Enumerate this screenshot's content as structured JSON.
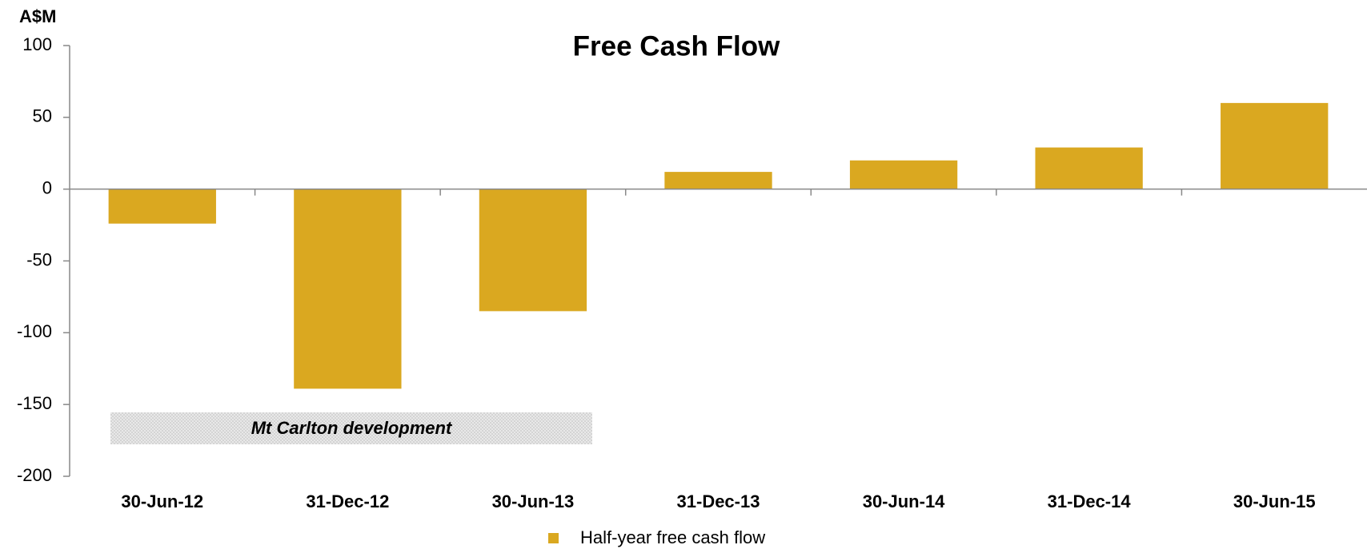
{
  "chart_data": {
    "type": "bar",
    "title": "Free Cash Flow",
    "ylabel": "A$M",
    "categories": [
      "30-Jun-12",
      "31-Dec-12",
      "30-Jun-13",
      "31-Dec-13",
      "30-Jun-14",
      "31-Dec-14",
      "30-Jun-15"
    ],
    "series": [
      {
        "name": "Half-year free cash flow",
        "color": "#daa820",
        "values": [
          -24,
          -139,
          -85,
          12,
          20,
          29,
          60
        ]
      }
    ],
    "ylim": [
      -200,
      100
    ],
    "yticks": [
      -200,
      -150,
      -100,
      -50,
      0,
      50,
      100
    ],
    "annotation": "Mt Carlton development",
    "legend": "bottom"
  }
}
